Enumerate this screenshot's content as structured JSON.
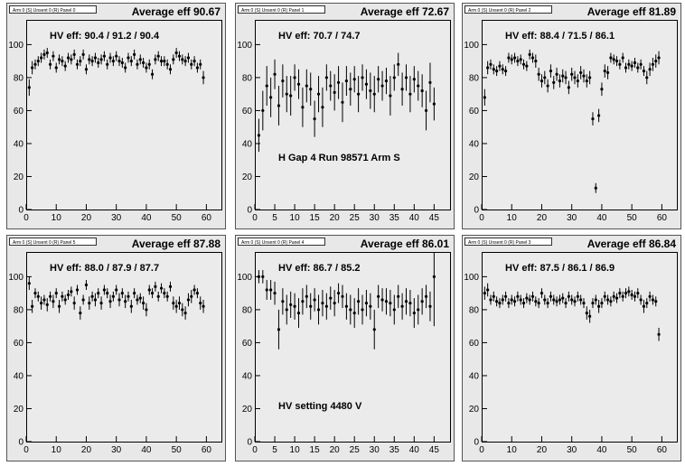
{
  "panels": [
    {
      "tag": "Arm 0 (S) Unsent 0 (R) Panel 0",
      "avg_label": "Average eff 90.67",
      "hv_label": "HV eff:   90.4 / 91.2 / 90.4",
      "extra_label": "",
      "chart_data": {
        "type": "scatter",
        "xlim": [
          0,
          65
        ],
        "ylim": [
          0,
          115
        ],
        "xticks": [
          0,
          10,
          20,
          30,
          40,
          50,
          60
        ],
        "yticks": [
          0,
          20,
          40,
          60,
          80,
          100
        ],
        "x": [
          1,
          2,
          3,
          4,
          5,
          6,
          7,
          8,
          9,
          10,
          11,
          12,
          13,
          14,
          15,
          16,
          17,
          18,
          19,
          20,
          21,
          22,
          23,
          24,
          25,
          26,
          27,
          28,
          29,
          30,
          31,
          32,
          33,
          34,
          35,
          36,
          37,
          38,
          39,
          40,
          41,
          42,
          43,
          44,
          45,
          46,
          47,
          48,
          49,
          50,
          51,
          52,
          53,
          54,
          55,
          56,
          57,
          58,
          59
        ],
        "y": [
          74,
          86,
          88,
          90,
          92,
          94,
          95,
          88,
          93,
          86,
          91,
          90,
          87,
          92,
          91,
          94,
          88,
          90,
          94,
          85,
          91,
          90,
          92,
          89,
          91,
          93,
          88,
          92,
          90,
          93,
          90,
          89,
          86,
          92,
          90,
          94,
          88,
          91,
          89,
          86,
          88,
          82,
          91,
          93,
          90,
          90,
          88,
          85,
          91,
          95,
          93,
          91,
          90,
          92,
          88,
          90,
          86,
          88,
          80
        ],
        "err": [
          5,
          4,
          3,
          3,
          3,
          3,
          3,
          3,
          3,
          3,
          3,
          3,
          3,
          3,
          3,
          3,
          3,
          3,
          3,
          3,
          3,
          3,
          3,
          3,
          3,
          3,
          3,
          3,
          3,
          3,
          3,
          3,
          3,
          3,
          3,
          3,
          3,
          3,
          3,
          3,
          3,
          3,
          3,
          3,
          3,
          3,
          3,
          3,
          3,
          3,
          3,
          3,
          3,
          3,
          3,
          3,
          3,
          3,
          4
        ]
      }
    },
    {
      "tag": "Arm 0 (S) Unsent 0 (R) Panel 1",
      "avg_label": "Average eff 72.67",
      "hv_label": "HV eff:   70.7 / 74.7",
      "extra_label": "H Gap 4 Run 98571 Arm S",
      "chart_data": {
        "type": "scatter",
        "xlim": [
          0,
          49
        ],
        "ylim": [
          0,
          115
        ],
        "xticks": [
          0,
          5,
          10,
          15,
          20,
          25,
          30,
          35,
          40,
          45
        ],
        "yticks": [
          0,
          20,
          40,
          60,
          80,
          100
        ],
        "x": [
          1,
          2,
          3,
          4,
          5,
          6,
          7,
          8,
          9,
          10,
          11,
          12,
          13,
          14,
          15,
          16,
          17,
          18,
          19,
          20,
          21,
          22,
          23,
          24,
          25,
          26,
          27,
          28,
          29,
          30,
          31,
          32,
          33,
          34,
          35,
          36,
          37,
          38,
          39,
          40,
          41,
          42,
          43,
          44,
          45
        ],
        "y": [
          45,
          60,
          75,
          68,
          82,
          63,
          78,
          70,
          69,
          80,
          76,
          62,
          75,
          73,
          55,
          70,
          62,
          80,
          75,
          71,
          77,
          65,
          78,
          73,
          79,
          70,
          80,
          76,
          72,
          70,
          79,
          75,
          78,
          69,
          80,
          88,
          73,
          80,
          70,
          79,
          75,
          72,
          60,
          77,
          64
        ],
        "err": [
          10,
          12,
          12,
          12,
          9,
          12,
          10,
          11,
          12,
          8,
          9,
          12,
          10,
          10,
          11,
          11,
          12,
          8,
          9,
          11,
          10,
          12,
          9,
          10,
          8,
          11,
          8,
          9,
          11,
          11,
          8,
          9,
          8,
          12,
          8,
          7,
          10,
          8,
          11,
          8,
          9,
          10,
          12,
          12,
          10
        ]
      }
    },
    {
      "tag": "Arm 0 (S) Unsent 0 (R) Panel 2",
      "avg_label": "Average eff 81.89",
      "hv_label": "HV eff:   88.4 / 71.5 / 86.1",
      "extra_label": "",
      "chart_data": {
        "type": "scatter",
        "xlim": [
          0,
          65
        ],
        "ylim": [
          0,
          115
        ],
        "xticks": [
          0,
          10,
          20,
          30,
          40,
          50,
          60
        ],
        "yticks": [
          0,
          20,
          40,
          60,
          80,
          100
        ],
        "x": [
          1,
          2,
          3,
          4,
          5,
          6,
          7,
          8,
          9,
          10,
          11,
          12,
          13,
          14,
          15,
          16,
          17,
          18,
          19,
          20,
          21,
          22,
          23,
          24,
          25,
          26,
          27,
          28,
          29,
          30,
          31,
          32,
          33,
          34,
          35,
          36,
          37,
          38,
          39,
          40,
          41,
          42,
          43,
          44,
          45,
          46,
          47,
          48,
          49,
          50,
          51,
          52,
          53,
          54,
          55,
          56,
          57,
          58,
          59
        ],
        "y": [
          68,
          86,
          88,
          85,
          84,
          87,
          85,
          84,
          92,
          91,
          92,
          90,
          91,
          88,
          87,
          94,
          92,
          90,
          82,
          78,
          80,
          75,
          84,
          77,
          82,
          78,
          81,
          80,
          74,
          82,
          80,
          78,
          83,
          81,
          78,
          80,
          55,
          13,
          57,
          73,
          84,
          83,
          92,
          91,
          90,
          88,
          92,
          86,
          88,
          87,
          89,
          86,
          88,
          84,
          80,
          85,
          88,
          90,
          92
        ],
        "err": [
          5,
          4,
          3,
          3,
          3,
          3,
          3,
          3,
          3,
          3,
          3,
          3,
          3,
          3,
          3,
          3,
          3,
          4,
          4,
          4,
          4,
          4,
          4,
          4,
          4,
          4,
          4,
          4,
          4,
          4,
          4,
          4,
          4,
          4,
          4,
          4,
          4,
          3,
          4,
          4,
          4,
          4,
          3,
          3,
          3,
          3,
          3,
          3,
          3,
          3,
          3,
          3,
          3,
          3,
          4,
          4,
          4,
          4,
          4
        ]
      }
    },
    {
      "tag": "Arm 0 (S) Unsent 0 (R) Panel 5",
      "avg_label": "Average eff 87.88",
      "hv_label": "HV eff:   88.0 / 87.9 / 87.7",
      "extra_label": "",
      "chart_data": {
        "type": "scatter",
        "xlim": [
          0,
          65
        ],
        "ylim": [
          0,
          115
        ],
        "xticks": [
          0,
          10,
          20,
          30,
          40,
          50,
          60
        ],
        "yticks": [
          0,
          20,
          40,
          60,
          80,
          100
        ],
        "x": [
          1,
          2,
          3,
          4,
          5,
          6,
          7,
          8,
          9,
          10,
          11,
          12,
          13,
          14,
          15,
          16,
          17,
          18,
          19,
          20,
          21,
          22,
          23,
          24,
          25,
          26,
          27,
          28,
          29,
          30,
          31,
          32,
          33,
          34,
          35,
          36,
          37,
          38,
          39,
          40,
          41,
          42,
          43,
          44,
          45,
          46,
          47,
          48,
          49,
          50,
          51,
          52,
          53,
          54,
          55,
          56,
          57,
          58,
          59
        ],
        "y": [
          96,
          82,
          90,
          88,
          84,
          86,
          83,
          88,
          85,
          90,
          82,
          88,
          86,
          89,
          91,
          84,
          92,
          78,
          86,
          95,
          84,
          88,
          86,
          90,
          84,
          92,
          90,
          85,
          88,
          92,
          86,
          90,
          85,
          88,
          82,
          90,
          86,
          87,
          84,
          80,
          92,
          90,
          94,
          88,
          93,
          90,
          88,
          94,
          84,
          82,
          84,
          80,
          78,
          86,
          88,
          92,
          90,
          84,
          82
        ],
        "err": [
          4,
          4,
          3,
          3,
          4,
          3,
          4,
          3,
          4,
          3,
          4,
          3,
          3,
          3,
          3,
          4,
          3,
          4,
          3,
          3,
          4,
          3,
          4,
          3,
          4,
          3,
          3,
          4,
          3,
          3,
          4,
          3,
          4,
          3,
          4,
          3,
          3,
          3,
          4,
          4,
          3,
          3,
          3,
          3,
          3,
          3,
          3,
          3,
          4,
          4,
          4,
          4,
          4,
          4,
          4,
          3,
          3,
          4,
          4
        ]
      }
    },
    {
      "tag": "Arm 0 (S) Unsent 0 (R) Panel 4",
      "avg_label": "Average eff 86.01",
      "hv_label": "HV eff:   86.7 / 85.2",
      "extra_label": "HV setting 4480 V",
      "chart_data": {
        "type": "scatter",
        "xlim": [
          0,
          49
        ],
        "ylim": [
          0,
          115
        ],
        "xticks": [
          0,
          5,
          10,
          15,
          20,
          25,
          30,
          35,
          40,
          45
        ],
        "yticks": [
          0,
          20,
          40,
          60,
          80,
          100
        ],
        "x": [
          1,
          2,
          3,
          4,
          5,
          6,
          7,
          8,
          9,
          10,
          11,
          12,
          13,
          14,
          15,
          16,
          17,
          18,
          19,
          20,
          21,
          22,
          23,
          24,
          25,
          26,
          27,
          28,
          29,
          30,
          31,
          32,
          33,
          34,
          35,
          36,
          37,
          38,
          39,
          40,
          41,
          42,
          43,
          44,
          45
        ],
        "y": [
          100,
          100,
          92,
          92,
          90,
          68,
          85,
          80,
          83,
          82,
          78,
          85,
          88,
          82,
          86,
          80,
          84,
          82,
          87,
          84,
          90,
          88,
          82,
          80,
          78,
          85,
          80,
          84,
          82,
          68,
          88,
          86,
          85,
          84,
          80,
          88,
          82,
          85,
          84,
          78,
          80,
          85,
          88,
          82,
          100
        ],
        "err": [
          4,
          4,
          6,
          6,
          7,
          12,
          8,
          9,
          8,
          8,
          9,
          8,
          7,
          8,
          7,
          9,
          8,
          8,
          7,
          8,
          6,
          7,
          8,
          9,
          9,
          8,
          9,
          8,
          8,
          12,
          7,
          7,
          8,
          8,
          9,
          7,
          8,
          8,
          8,
          9,
          9,
          8,
          7,
          9,
          30
        ]
      }
    },
    {
      "tag": "Arm 0 (S) Unsent 0 (R) Panel 3",
      "avg_label": "Average eff 86.84",
      "hv_label": "HV eff:   87.5 / 86.1 / 86.9",
      "extra_label": "",
      "chart_data": {
        "type": "scatter",
        "xlim": [
          0,
          65
        ],
        "ylim": [
          0,
          115
        ],
        "xticks": [
          0,
          10,
          20,
          30,
          40,
          50,
          60
        ],
        "yticks": [
          0,
          20,
          40,
          60,
          80,
          100
        ],
        "x": [
          1,
          2,
          3,
          4,
          5,
          6,
          7,
          8,
          9,
          10,
          11,
          12,
          13,
          14,
          15,
          16,
          17,
          18,
          19,
          20,
          21,
          22,
          23,
          24,
          25,
          26,
          27,
          28,
          29,
          30,
          31,
          32,
          33,
          34,
          35,
          36,
          37,
          38,
          39,
          40,
          41,
          42,
          43,
          44,
          45,
          46,
          47,
          48,
          49,
          50,
          51,
          52,
          53,
          54,
          55,
          56,
          57,
          58,
          59
        ],
        "y": [
          90,
          92,
          86,
          88,
          85,
          84,
          86,
          88,
          84,
          86,
          85,
          88,
          86,
          84,
          87,
          86,
          88,
          85,
          84,
          90,
          86,
          84,
          88,
          86,
          85,
          86,
          87,
          84,
          88,
          86,
          85,
          88,
          86,
          84,
          78,
          76,
          84,
          86,
          82,
          84,
          88,
          86,
          85,
          88,
          87,
          90,
          88,
          90,
          91,
          89,
          88,
          90,
          86,
          82,
          84,
          88,
          86,
          85,
          65
        ],
        "err": [
          4,
          4,
          3,
          3,
          3,
          3,
          3,
          3,
          3,
          3,
          3,
          3,
          3,
          3,
          3,
          3,
          3,
          3,
          3,
          3,
          3,
          3,
          3,
          3,
          3,
          3,
          3,
          3,
          3,
          3,
          3,
          3,
          3,
          3,
          4,
          4,
          3,
          3,
          4,
          3,
          3,
          3,
          3,
          3,
          3,
          3,
          3,
          3,
          3,
          3,
          3,
          3,
          3,
          4,
          3,
          3,
          3,
          3,
          4
        ]
      }
    }
  ]
}
